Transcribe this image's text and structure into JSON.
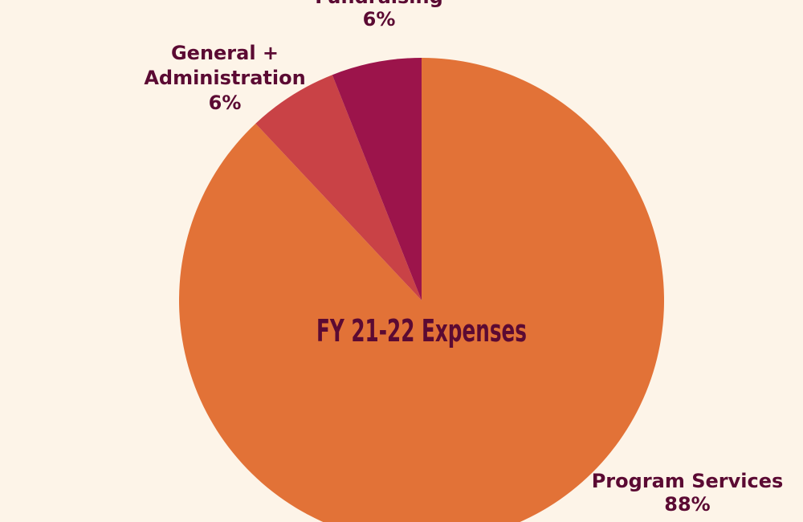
{
  "chart_data": {
    "type": "pie",
    "title": "FY 21-22 Expenses",
    "slices": [
      {
        "label": "Program Services",
        "label_lines": [
          "Program Services"
        ],
        "value": 88,
        "display": "88%",
        "color": "#E27237"
      },
      {
        "label": "General + Administration",
        "label_lines": [
          "General +",
          "Administration"
        ],
        "value": 6,
        "display": "6%",
        "color": "#C94246"
      },
      {
        "label": "Fundraising",
        "label_lines": [
          "Fundraising"
        ],
        "value": 6,
        "display": "6%",
        "color": "#9C144B"
      }
    ],
    "start": "12 o'clock",
    "direction": "clockwise"
  },
  "colors": {
    "background": "#FDF4E8",
    "text": "#5B0A33"
  }
}
